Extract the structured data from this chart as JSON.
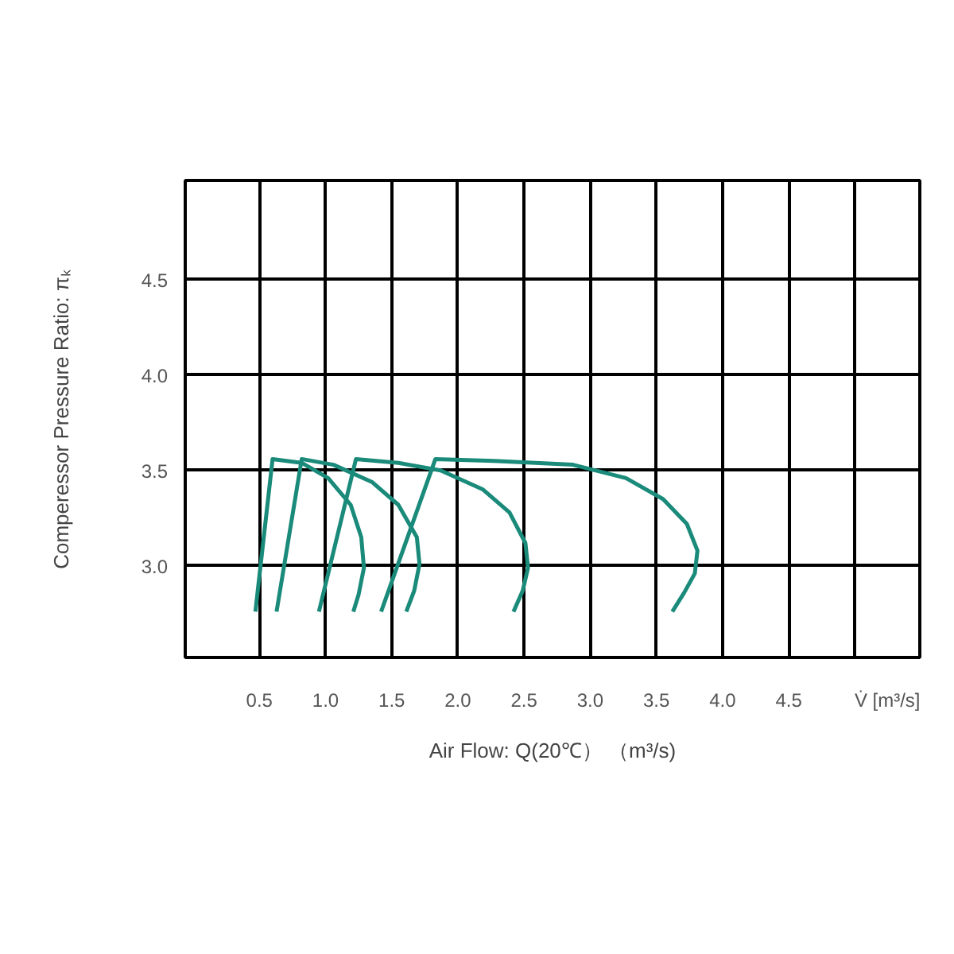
{
  "chart_data": {
    "type": "line",
    "xlabel": "Air Flow: Q(20℃） （m³/s)",
    "ylabel": "Comperessor Pressure Ratio: πₖ",
    "annotations": [
      "V̇ [m³/s]"
    ],
    "xlim": [
      -0.06,
      5.49
    ],
    "ylim": [
      2.52,
      5.02
    ],
    "xticks": [
      0.5,
      {
        "value": 1.0,
        "label": "1.0"
      },
      1.5,
      {
        "value": 2.0,
        "label": "2.0"
      },
      2.5,
      {
        "value": 3.0,
        "label": "3.0"
      },
      3.5,
      {
        "value": 4.0,
        "label": "4.0"
      },
      4.5,
      {
        "value": 5.0,
        "label": null
      }
    ],
    "yticks": [
      {
        "value": 3.0,
        "label": "3.0"
      },
      3.5,
      {
        "value": 4.0,
        "label": "4.0"
      },
      4.5
    ],
    "grid": true,
    "marker": "none",
    "line_style": "solid",
    "series": [
      {
        "color": "#1a8a7a",
        "x": [
          0.47,
          0.6,
          0.82,
          1.02,
          1.19,
          1.27,
          1.29,
          1.25,
          1.21
        ],
        "values": [
          2.76,
          3.56,
          3.54,
          3.46,
          3.32,
          3.15,
          2.99,
          2.85,
          2.76
        ]
      },
      {
        "color": "#1a8a7a",
        "x": [
          0.63,
          0.82,
          1.06,
          1.35,
          1.55,
          1.69,
          1.71,
          1.67,
          1.61
        ],
        "values": [
          2.76,
          3.56,
          3.53,
          3.44,
          3.32,
          3.15,
          3.01,
          2.87,
          2.76
        ]
      },
      {
        "color": "#1a8a7a",
        "x": [
          0.95,
          1.23,
          1.55,
          1.87,
          2.19,
          2.39,
          2.51,
          2.53,
          2.49,
          2.42
        ],
        "values": [
          2.76,
          3.56,
          3.54,
          3.5,
          3.4,
          3.28,
          3.12,
          2.99,
          2.87,
          2.76
        ]
      },
      {
        "color": "#1a8a7a",
        "x": [
          1.42,
          1.83,
          2.27,
          2.87,
          3.27,
          3.55,
          3.73,
          3.81,
          3.79,
          3.71,
          3.62
        ],
        "values": [
          2.76,
          3.56,
          3.55,
          3.53,
          3.46,
          3.35,
          3.22,
          3.08,
          2.96,
          2.86,
          2.76
        ]
      }
    ]
  }
}
